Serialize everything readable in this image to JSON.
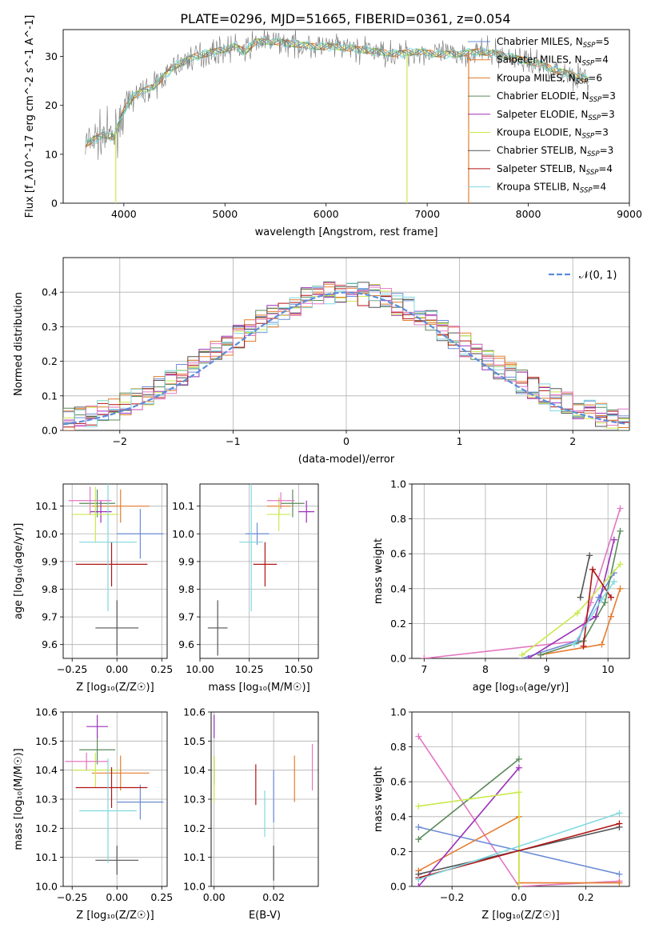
{
  "figure_title": "PLATE=0296, MJD=51665, FIBERID=0361, z=0.054",
  "colors": {
    "Chabrier MILES": "#6b8cd6",
    "Salpeter MILES": "#e67c2f",
    "Kroupa MILES": "#d9782a",
    "Chabrier ELODIE": "#5a8a5a",
    "Salpeter ELODIE": "#9b30b8",
    "Kroupa ELODIE": "#c9ea4e",
    "Chabrier STELIB": "#555555",
    "Salpeter STELIB": "#b01515",
    "Kroupa STELIB": "#7fd8e0",
    "extra": "#e377c2",
    "gaussian": "#5b8ddb"
  },
  "chart_data": [
    {
      "id": "spectrum",
      "type": "line",
      "xlabel": "wavelength [Angstrom, rest frame]",
      "ylabel": "Flux [f_λ10^-17 erg cm^-2 s^-1 A^-1]",
      "xlim": [
        3400,
        9000
      ],
      "ylim": [
        0,
        35.5
      ],
      "xticks": [
        4000,
        5000,
        6000,
        7000,
        8000,
        9000
      ],
      "yticks": [
        0,
        10,
        20,
        30
      ],
      "grid": false,
      "legend_position": "top-right",
      "legend": [
        {
          "label": "Chabrier MILES, N",
          "sub": "SSP",
          "suffix": "=5",
          "color_key": "Chabrier MILES"
        },
        {
          "label": "Salpeter MILES, N",
          "sub": "SSP",
          "suffix": "=4",
          "color_key": "Salpeter MILES"
        },
        {
          "label": "Kroupa MILES, N",
          "sub": "SSP",
          "suffix": "=6",
          "color_key": "Kroupa MILES"
        },
        {
          "label": "Chabrier ELODIE, N",
          "sub": "SSP",
          "suffix": "=3",
          "color_key": "Chabrier ELODIE"
        },
        {
          "label": "Salpeter ELODIE, N",
          "sub": "SSP",
          "suffix": "=3",
          "color_key": "Salpeter ELODIE"
        },
        {
          "label": "Kroupa ELODIE, N",
          "sub": "SSP",
          "suffix": "=3",
          "color_key": "Kroupa ELODIE"
        },
        {
          "label": "Chabrier STELIB, N",
          "sub": "SSP",
          "suffix": "=3",
          "color_key": "Chabrier STELIB"
        },
        {
          "label": "Salpeter STELIB, N",
          "sub": "SSP",
          "suffix": "=4",
          "color_key": "Salpeter STELIB"
        },
        {
          "label": "Kroupa STELIB, N",
          "sub": "SSP",
          "suffix": "=4",
          "color_key": "Kroupa STELIB"
        }
      ],
      "continuum": {
        "x": [
          3620,
          3700,
          3800,
          3900,
          3950,
          4000,
          4100,
          4200,
          4300,
          4400,
          4500,
          4700,
          4900,
          5100,
          5200,
          5300,
          5500,
          5700,
          5900,
          6100,
          6300,
          6500,
          6700,
          6900,
          7100,
          7300,
          7500,
          7700,
          7900,
          8100,
          8300,
          8500,
          8600
        ],
        "y": [
          12,
          13,
          14,
          13.5,
          16,
          19,
          22,
          23,
          24,
          26,
          28,
          30,
          31,
          32,
          31,
          33,
          33,
          32.5,
          32,
          32,
          31.5,
          31,
          30.5,
          31,
          30.5,
          30.5,
          31,
          30.5,
          29.5,
          28.5,
          27,
          26,
          25
        ]
      },
      "dropouts": [
        {
          "x": 3920,
          "model_key": "Kroupa ELODIE"
        },
        {
          "x": 6800,
          "model_key": "Kroupa ELODIE"
        },
        {
          "x": 7410,
          "model_key": "Salpeter MILES"
        }
      ]
    },
    {
      "id": "residual_hist",
      "type": "step",
      "xlabel": "(data-model)/error",
      "ylabel": "Normed distribution",
      "xlim": [
        -2.5,
        2.5
      ],
      "ylim": [
        0,
        0.5
      ],
      "xticks": [
        -2,
        -1,
        0,
        1,
        2
      ],
      "yticks": [
        0.0,
        0.1,
        0.2,
        0.3,
        0.4
      ],
      "grid": true,
      "legend_position": "top-right",
      "legend_label": "𝒩(0, 1)",
      "bin_width": 0.1
    },
    {
      "id": "age_vs_Z",
      "type": "errorbar",
      "xlabel": "Z [log₁₀(Z/Z☉)]",
      "ylabel": "age  [log₁₀(age/yr)]",
      "xlim": [
        -0.3,
        0.28
      ],
      "ylim": [
        9.55,
        10.18
      ],
      "xticks": [
        -0.25,
        0.0,
        0.25
      ],
      "xtick_labels": [
        "−0.25",
        "0.00",
        "0.25"
      ],
      "yticks": [
        9.6,
        9.7,
        9.8,
        9.9,
        10.0,
        10.1
      ],
      "grid": true,
      "points": [
        {
          "key": "Chabrier MILES",
          "x": 0.13,
          "xerr": 0.13,
          "y": 10.0,
          "yerr": 0.09
        },
        {
          "key": "Salpeter MILES",
          "x": 0.02,
          "xerr": 0.16,
          "y": 10.1,
          "yerr": 0.06
        },
        {
          "key": "Chabrier ELODIE",
          "x": -0.11,
          "xerr": 0.1,
          "y": 10.11,
          "yerr": 0.05
        },
        {
          "key": "Salpeter ELODIE",
          "x": -0.09,
          "xerr": 0.06,
          "y": 10.08,
          "yerr": 0.04
        },
        {
          "key": "Kroupa ELODIE",
          "x": -0.12,
          "xerr": 0.13,
          "y": 10.07,
          "yerr": 0.1
        },
        {
          "key": "Chabrier STELIB",
          "x": 0.0,
          "xerr": 0.12,
          "y": 9.66,
          "yerr": 0.1
        },
        {
          "key": "Salpeter STELIB",
          "x": -0.03,
          "xerr": 0.2,
          "y": 9.89,
          "yerr": 0.08
        },
        {
          "key": "Kroupa STELIB",
          "x": -0.05,
          "xerr": 0.16,
          "y": 9.97,
          "yerr": 0.25
        },
        {
          "key": "extra",
          "x": -0.15,
          "xerr": 0.12,
          "y": 10.12,
          "yerr": 0.05
        }
      ]
    },
    {
      "id": "age_vs_mass",
      "type": "errorbar",
      "xlabel": "mass [log₁₀(M/M☉)]",
      "ylabel": "",
      "xlim": [
        10.0,
        10.6
      ],
      "ylim": [
        9.55,
        10.18
      ],
      "xticks": [
        10.0,
        10.25,
        10.5
      ],
      "xtick_labels": [
        "10.00",
        "10.25",
        "10.50"
      ],
      "yticks": [
        9.6,
        9.7,
        9.8,
        9.9,
        10.0,
        10.1
      ],
      "grid": true,
      "points": [
        {
          "key": "Chabrier MILES",
          "x": 10.29,
          "xerr": 0.06,
          "y": 10.0,
          "yerr": 0.04
        },
        {
          "key": "Salpeter MILES",
          "x": 10.4,
          "xerr": 0.06,
          "y": 10.1,
          "yerr": 0.03
        },
        {
          "key": "Chabrier ELODIE",
          "x": 10.47,
          "xerr": 0.06,
          "y": 10.11,
          "yerr": 0.05
        },
        {
          "key": "Salpeter ELODIE",
          "x": 10.54,
          "xerr": 0.04,
          "y": 10.08,
          "yerr": 0.04
        },
        {
          "key": "Kroupa ELODIE",
          "x": 10.4,
          "xerr": 0.06,
          "y": 10.07,
          "yerr": 0.06
        },
        {
          "key": "Chabrier STELIB",
          "x": 10.09,
          "xerr": 0.05,
          "y": 9.66,
          "yerr": 0.1
        },
        {
          "key": "Salpeter STELIB",
          "x": 10.33,
          "xerr": 0.06,
          "y": 9.89,
          "yerr": 0.08
        },
        {
          "key": "Kroupa STELIB",
          "x": 10.26,
          "xerr": 0.06,
          "y": 9.97,
          "yerr": 0.25
        },
        {
          "key": "extra",
          "x": 10.41,
          "xerr": 0.07,
          "y": 10.12,
          "yerr": 0.03
        }
      ]
    },
    {
      "id": "massweight_vs_age",
      "type": "line",
      "xlabel": "age  [log₁₀(age/yr)]",
      "ylabel": "mass weight",
      "xlim": [
        6.8,
        10.35
      ],
      "ylim": [
        0,
        1.0
      ],
      "xticks": [
        7,
        8,
        9,
        10
      ],
      "yticks": [
        0.0,
        0.2,
        0.4,
        0.6,
        0.8,
        1.0
      ],
      "grid": true,
      "series": [
        {
          "key": "extra",
          "x": [
            7.0,
            9.52,
            9.72,
            10.2
          ],
          "y": [
            0.0,
            0.1,
            0.32,
            0.86
          ]
        },
        {
          "key": "Chabrier MILES",
          "x": [
            8.6,
            9.5,
            9.85,
            10.1
          ],
          "y": [
            0.0,
            0.1,
            0.35,
            0.49
          ]
        },
        {
          "key": "Salpeter MILES",
          "x": [
            8.9,
            9.9,
            10.05,
            10.2
          ],
          "y": [
            0.02,
            0.08,
            0.24,
            0.4
          ]
        },
        {
          "key": "Chabrier ELODIE",
          "x": [
            8.9,
            9.6,
            9.95,
            10.2
          ],
          "y": [
            0.02,
            0.1,
            0.32,
            0.73
          ]
        },
        {
          "key": "Salpeter ELODIE",
          "x": [
            8.7,
            9.8,
            10.1
          ],
          "y": [
            0.0,
            0.24,
            0.68
          ]
        },
        {
          "key": "Kroupa ELODIE",
          "x": [
            8.6,
            9.5,
            10.2
          ],
          "y": [
            0.02,
            0.26,
            0.54
          ]
        },
        {
          "key": "Chabrier STELIB",
          "x": [
            9.55,
            9.7
          ],
          "y": [
            0.35,
            0.59
          ]
        },
        {
          "key": "Salpeter STELIB",
          "x": [
            9.6,
            9.75,
            10.05
          ],
          "y": [
            0.07,
            0.51,
            0.35
          ]
        },
        {
          "key": "Kroupa STELIB",
          "x": [
            9.45,
            9.9,
            10.1
          ],
          "y": [
            0.08,
            0.34,
            0.44
          ]
        }
      ]
    },
    {
      "id": "mass_vs_Z",
      "type": "errorbar",
      "xlabel": "Z [log₁₀(Z/Z☉)]",
      "ylabel": "mass [log₁₀(M/M☉)]",
      "xlim": [
        -0.3,
        0.28
      ],
      "ylim": [
        10.0,
        10.6
      ],
      "xticks": [
        -0.25,
        0.0,
        0.25
      ],
      "xtick_labels": [
        "−0.25",
        "0.00",
        "0.25"
      ],
      "yticks": [
        10.0,
        10.1,
        10.2,
        10.3,
        10.4,
        10.5,
        10.6
      ],
      "grid": true,
      "points": [
        {
          "key": "Chabrier MILES",
          "x": 0.13,
          "xerr": 0.13,
          "y": 10.29,
          "yerr": 0.06
        },
        {
          "key": "Salpeter MILES",
          "x": 0.02,
          "xerr": 0.16,
          "y": 10.39,
          "yerr": 0.06
        },
        {
          "key": "Chabrier ELODIE",
          "x": -0.11,
          "xerr": 0.1,
          "y": 10.47,
          "yerr": 0.05
        },
        {
          "key": "Salpeter ELODIE",
          "x": -0.11,
          "xerr": 0.06,
          "y": 10.55,
          "yerr": 0.04
        },
        {
          "key": "Kroupa ELODIE",
          "x": -0.12,
          "xerr": 0.13,
          "y": 10.4,
          "yerr": 0.06
        },
        {
          "key": "Chabrier STELIB",
          "x": 0.0,
          "xerr": 0.12,
          "y": 10.09,
          "yerr": 0.05
        },
        {
          "key": "Salpeter STELIB",
          "x": -0.03,
          "xerr": 0.2,
          "y": 10.34,
          "yerr": 0.07
        },
        {
          "key": "Kroupa STELIB",
          "x": -0.05,
          "xerr": 0.16,
          "y": 10.26,
          "yerr": 0.18
        },
        {
          "key": "extra",
          "x": -0.17,
          "xerr": 0.12,
          "y": 10.43,
          "yerr": 0.03
        }
      ]
    },
    {
      "id": "mass_vs_ebv",
      "type": "errorbar",
      "xlabel": "E(B-V)",
      "ylabel": "",
      "xlim": [
        -0.001,
        0.035
      ],
      "ylim": [
        10.0,
        10.6
      ],
      "xticks": [
        0.0,
        0.02
      ],
      "xtick_labels": [
        "0.00",
        "0.02"
      ],
      "yticks": [
        10.0,
        10.1,
        10.2,
        10.3,
        10.4,
        10.5,
        10.6
      ],
      "grid": true,
      "points": [
        {
          "key": "Chabrier MILES",
          "x": 0.02,
          "xerr": 0,
          "y": 10.31,
          "yerr": 0.09
        },
        {
          "key": "Salpeter MILES",
          "x": 0.027,
          "xerr": 0,
          "y": 10.37,
          "yerr": 0.08
        },
        {
          "key": "Chabrier ELODIE",
          "x": 0.0,
          "xerr": 0,
          "y": 10.4,
          "yerr": 0.05
        },
        {
          "key": "Salpeter ELODIE",
          "x": 0.0,
          "xerr": 0,
          "y": 10.55,
          "yerr": 0.04
        },
        {
          "key": "Kroupa ELODIE",
          "x": 0.0,
          "xerr": 0,
          "y": 10.37,
          "yerr": 0.08
        },
        {
          "key": "Chabrier STELIB",
          "x": 0.02,
          "xerr": 0,
          "y": 10.08,
          "yerr": 0.06
        },
        {
          "key": "Salpeter STELIB",
          "x": 0.014,
          "xerr": 0,
          "y": 10.35,
          "yerr": 0.07
        },
        {
          "key": "Kroupa STELIB",
          "x": 0.017,
          "xerr": 0,
          "y": 10.25,
          "yerr": 0.08
        },
        {
          "key": "extra",
          "x": 0.033,
          "xerr": 0,
          "y": 10.41,
          "yerr": 0.08
        }
      ]
    },
    {
      "id": "massweight_vs_Z",
      "type": "line",
      "xlabel": "Z [log₁₀(Z/Z☉)]",
      "ylabel": "mass weight",
      "xlim": [
        -0.32,
        0.33
      ],
      "ylim": [
        0,
        1.0
      ],
      "xticks": [
        -0.2,
        0.0,
        0.2
      ],
      "xtick_labels": [
        "−0.2",
        "0.0",
        "0.2"
      ],
      "yticks": [
        0.0,
        0.2,
        0.4,
        0.6,
        0.8,
        1.0
      ],
      "grid": true,
      "series": [
        {
          "key": "extra",
          "x": [
            -0.3,
            0.0,
            0.3
          ],
          "y": [
            0.86,
            0.0,
            0.03
          ]
        },
        {
          "key": "Chabrier MILES",
          "x": [
            -0.3,
            0.3
          ],
          "y": [
            0.34,
            0.07
          ]
        },
        {
          "key": "Salpeter MILES",
          "x": [
            -0.3,
            0.0,
            0.0,
            0.3
          ],
          "y": [
            0.09,
            0.4,
            0.02,
            0.02
          ]
        },
        {
          "key": "Chabrier ELODIE",
          "x": [
            -0.3,
            0.0
          ],
          "y": [
            0.27,
            0.73
          ]
        },
        {
          "key": "Salpeter ELODIE",
          "x": [
            -0.3,
            0.0
          ],
          "y": [
            0.0,
            0.68
          ]
        },
        {
          "key": "Kroupa ELODIE",
          "x": [
            -0.3,
            0.0,
            0.0
          ],
          "y": [
            0.46,
            0.54,
            0.0
          ]
        },
        {
          "key": "Chabrier STELIB",
          "x": [
            -0.3,
            0.3
          ],
          "y": [
            0.07,
            0.34
          ]
        },
        {
          "key": "Salpeter STELIB",
          "x": [
            -0.3,
            0.3
          ],
          "y": [
            0.05,
            0.36
          ]
        },
        {
          "key": "Kroupa STELIB",
          "x": [
            -0.3,
            0.3
          ],
          "y": [
            0.04,
            0.42
          ]
        }
      ]
    }
  ]
}
